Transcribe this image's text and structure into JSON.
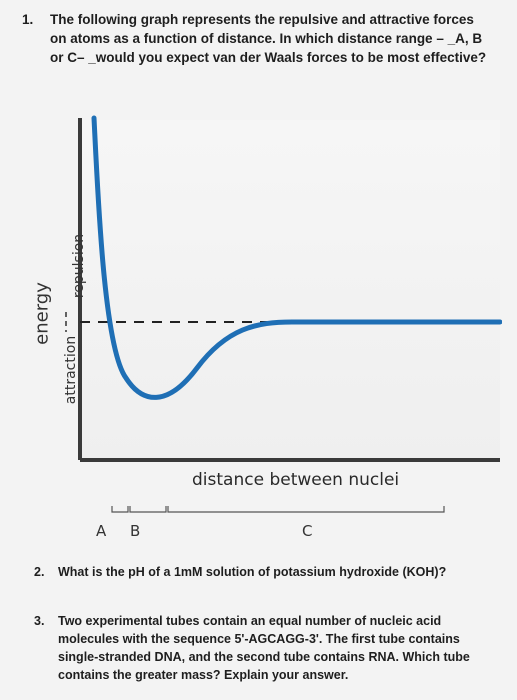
{
  "q1": {
    "number": "1.",
    "text": "The following graph represents the repulsive and attractive forces on atoms as a function of distance. In which distance range – _A, B or C– _would you expect van der Waals forces to be most effective?"
  },
  "figure": {
    "energy_label": "energy",
    "repulsion_label": "repulsion",
    "attraction_label": "attraction",
    "axis_label": "distance between nuclei",
    "ranges": [
      "A",
      "B",
      "C"
    ],
    "curve_color": "#1f6fb5"
  },
  "q2": {
    "number": "2.",
    "text": "What is the pH of a 1mM solution of potassium hydroxide (KOH)?"
  },
  "q3": {
    "number": "3.",
    "text": "Two experimental tubes contain an equal number of nucleic acid molecules with the sequence 5'-AGCAGG-3'. The first tube contains single-stranded DNA, and the second tube contains RNA. Which tube contains the greater mass? Explain your answer."
  }
}
